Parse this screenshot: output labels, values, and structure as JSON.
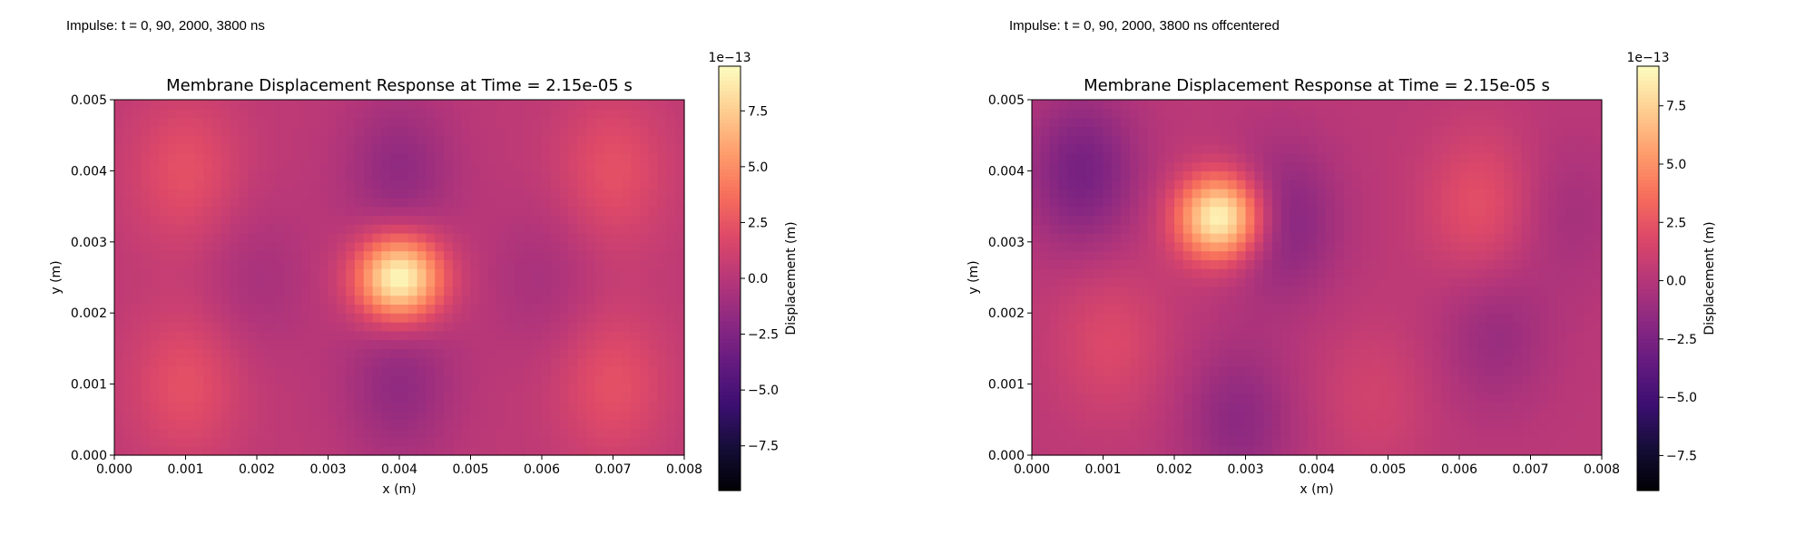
{
  "captions": {
    "left": "Impulse: t = 0, 90, 2000, 3800 ns",
    "right": "Impulse: t = 0, 90, 2000, 3800 ns offcentered"
  },
  "chart_data": [
    {
      "type": "heatmap",
      "title": "Membrane Displacement Response at Time = 2.15e-05 s",
      "xlabel": "x (m)",
      "ylabel": "y (m)",
      "xlim": [
        0.0,
        0.008
      ],
      "ylim": [
        0.0,
        0.005
      ],
      "xticks": [
        "0.000",
        "0.001",
        "0.002",
        "0.003",
        "0.004",
        "0.005",
        "0.006",
        "0.007",
        "0.008"
      ],
      "yticks": [
        "0.000",
        "0.001",
        "0.002",
        "0.003",
        "0.004",
        "0.005"
      ],
      "colormap": "magma",
      "colorbar": {
        "label": "Displacement (m)",
        "exponent": "1e−13",
        "range": [
          -9.5,
          9.5
        ],
        "ticks": [
          -7.5,
          -5.0,
          -2.5,
          0.0,
          2.5,
          5.0,
          7.5
        ],
        "tick_labels": [
          "−7.5",
          "−5.0",
          "−2.5",
          "0.0",
          "2.5",
          "5.0",
          "7.5"
        ]
      },
      "peak": {
        "x": 0.004,
        "y": 0.0025,
        "value": 9.5
      },
      "features": [
        {
          "x": 0.001,
          "y": 0.004,
          "value": 2.0
        },
        {
          "x": 0.007,
          "y": 0.004,
          "value": 2.0
        },
        {
          "x": 0.001,
          "y": 0.001,
          "value": 2.0
        },
        {
          "x": 0.007,
          "y": 0.001,
          "value": 2.0
        },
        {
          "x": 0.004,
          "y": 0.004,
          "value": -2.0
        },
        {
          "x": 0.004,
          "y": 0.001,
          "value": -2.0
        },
        {
          "x": 0.002,
          "y": 0.0025,
          "value": -1.0
        },
        {
          "x": 0.006,
          "y": 0.0025,
          "value": -1.0
        }
      ]
    },
    {
      "type": "heatmap",
      "title": "Membrane Displacement Response at Time = 2.15e-05 s",
      "xlabel": "x (m)",
      "ylabel": "y (m)",
      "xlim": [
        0.0,
        0.008
      ],
      "ylim": [
        0.0,
        0.005
      ],
      "xticks": [
        "0.000",
        "0.001",
        "0.002",
        "0.003",
        "0.004",
        "0.005",
        "0.006",
        "0.007",
        "0.008"
      ],
      "yticks": [
        "0.000",
        "0.001",
        "0.002",
        "0.003",
        "0.004",
        "0.005"
      ],
      "colormap": "magma",
      "colorbar": {
        "label": "Displacement (m)",
        "exponent": "1e−13",
        "range": [
          -9.0,
          9.2
        ],
        "ticks": [
          -7.5,
          -5.0,
          -2.5,
          0.0,
          2.5,
          5.0,
          7.5
        ],
        "tick_labels": [
          "−7.5",
          "−5.0",
          "−2.5",
          "0.0",
          "2.5",
          "5.0",
          "7.5"
        ]
      },
      "peak": {
        "x": 0.00265,
        "y": 0.00335,
        "value": 9.2
      },
      "features": [
        {
          "x": 0.0007,
          "y": 0.004,
          "value": -3.0
        },
        {
          "x": 0.0035,
          "y": 0.0033,
          "value": -2.5
        },
        {
          "x": 0.0029,
          "y": 0.0005,
          "value": -2.0
        },
        {
          "x": 0.0063,
          "y": 0.0035,
          "value": 2.0
        },
        {
          "x": 0.0011,
          "y": 0.0016,
          "value": 1.5
        },
        {
          "x": 0.0048,
          "y": 0.0008,
          "value": 1.0
        },
        {
          "x": 0.0065,
          "y": 0.0017,
          "value": -1.5
        },
        {
          "x": 0.0075,
          "y": 0.0034,
          "value": -1.0
        }
      ]
    }
  ]
}
